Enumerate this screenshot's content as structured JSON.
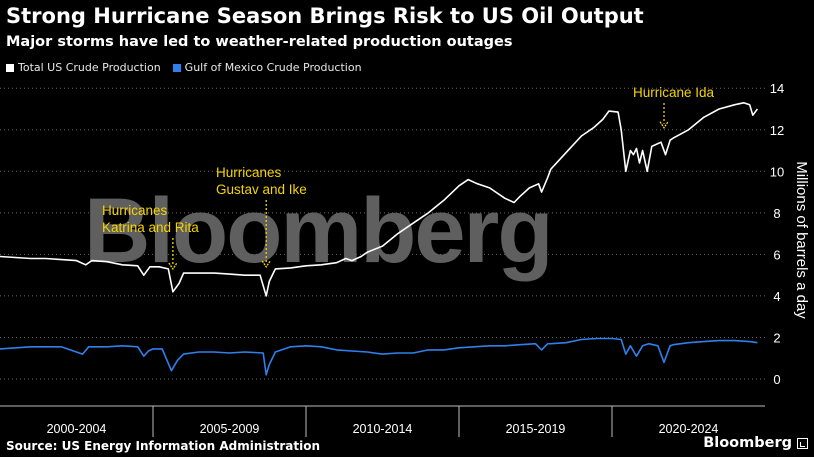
{
  "header": {
    "title": "Strong Hurricane Season Brings Risk to US Oil Output",
    "subtitle": "Major storms have led to weather-related production outages"
  },
  "legend": [
    {
      "label": "Total US Crude Production",
      "color": "#ffffff"
    },
    {
      "label": "Gulf of Mexico Crude Production",
      "color": "#2f80ed"
    }
  ],
  "footer": {
    "source": "Source: US Energy Information Administration",
    "brand": "Bloomberg"
  },
  "watermark": "Bloomberg",
  "chart_data": {
    "type": "line",
    "title": "Strong Hurricane Season Brings Risk to US Oil Output",
    "subtitle": "Major storms have led to weather-related production outages",
    "ylabel": "Millions of barrels a day",
    "xlabel": "",
    "ylim": [
      -1.3,
      14.3
    ],
    "xlim": [
      2000.0,
      2025.0
    ],
    "yticks": [
      0,
      2,
      4,
      6,
      8,
      10,
      12,
      14
    ],
    "x_categories": [
      "2000-2004",
      "2005-2009",
      "2010-2014",
      "2015-2019",
      "2020-2024"
    ],
    "grid": "horizontal dotted",
    "legend_position": "top-left",
    "series": [
      {
        "name": "Total US Crude Production",
        "color": "#ffffff",
        "points": [
          [
            2000.0,
            5.9
          ],
          [
            2000.5,
            5.85
          ],
          [
            2001.0,
            5.8
          ],
          [
            2001.5,
            5.8
          ],
          [
            2002.0,
            5.75
          ],
          [
            2002.5,
            5.7
          ],
          [
            2002.8,
            5.5
          ],
          [
            2003.0,
            5.7
          ],
          [
            2003.5,
            5.65
          ],
          [
            2004.0,
            5.5
          ],
          [
            2004.5,
            5.45
          ],
          [
            2004.7,
            5.0
          ],
          [
            2004.9,
            5.4
          ],
          [
            2005.2,
            5.4
          ],
          [
            2005.5,
            5.3
          ],
          [
            2005.65,
            4.2
          ],
          [
            2005.85,
            4.6
          ],
          [
            2006.0,
            5.1
          ],
          [
            2006.5,
            5.1
          ],
          [
            2007.0,
            5.1
          ],
          [
            2007.5,
            5.05
          ],
          [
            2008.0,
            5.0
          ],
          [
            2008.5,
            5.0
          ],
          [
            2008.7,
            4.0
          ],
          [
            2008.8,
            4.7
          ],
          [
            2009.0,
            5.3
          ],
          [
            2009.5,
            5.35
          ],
          [
            2010.0,
            5.45
          ],
          [
            2010.5,
            5.5
          ],
          [
            2011.0,
            5.6
          ],
          [
            2011.3,
            5.8
          ],
          [
            2011.5,
            5.7
          ],
          [
            2011.8,
            5.9
          ],
          [
            2012.0,
            6.1
          ],
          [
            2012.5,
            6.4
          ],
          [
            2013.0,
            7.0
          ],
          [
            2013.5,
            7.5
          ],
          [
            2014.0,
            8.0
          ],
          [
            2014.5,
            8.6
          ],
          [
            2015.0,
            9.3
          ],
          [
            2015.3,
            9.6
          ],
          [
            2015.6,
            9.4
          ],
          [
            2016.0,
            9.2
          ],
          [
            2016.5,
            8.7
          ],
          [
            2016.8,
            8.5
          ],
          [
            2017.0,
            8.8
          ],
          [
            2017.3,
            9.2
          ],
          [
            2017.6,
            9.4
          ],
          [
            2017.7,
            9.0
          ],
          [
            2017.9,
            9.7
          ],
          [
            2018.0,
            10.1
          ],
          [
            2018.5,
            10.9
          ],
          [
            2019.0,
            11.7
          ],
          [
            2019.4,
            12.1
          ],
          [
            2019.7,
            12.5
          ],
          [
            2019.9,
            12.9
          ],
          [
            2020.2,
            12.85
          ],
          [
            2020.3,
            12.0
          ],
          [
            2020.45,
            10.0
          ],
          [
            2020.6,
            11.0
          ],
          [
            2020.7,
            10.8
          ],
          [
            2020.8,
            11.1
          ],
          [
            2020.9,
            10.4
          ],
          [
            2021.0,
            11.0
          ],
          [
            2021.15,
            10.0
          ],
          [
            2021.3,
            11.2
          ],
          [
            2021.6,
            11.4
          ],
          [
            2021.75,
            10.8
          ],
          [
            2021.9,
            11.5
          ],
          [
            2022.0,
            11.6
          ],
          [
            2022.5,
            12.0
          ],
          [
            2023.0,
            12.6
          ],
          [
            2023.5,
            13.0
          ],
          [
            2024.0,
            13.2
          ],
          [
            2024.3,
            13.3
          ],
          [
            2024.5,
            13.2
          ],
          [
            2024.6,
            12.7
          ],
          [
            2024.75,
            13.0
          ]
        ]
      },
      {
        "name": "Gulf of Mexico Crude Production",
        "color": "#2f80ed",
        "points": [
          [
            2000.0,
            1.45
          ],
          [
            2001.0,
            1.55
          ],
          [
            2002.0,
            1.55
          ],
          [
            2002.7,
            1.2
          ],
          [
            2002.9,
            1.55
          ],
          [
            2003.5,
            1.55
          ],
          [
            2004.0,
            1.6
          ],
          [
            2004.5,
            1.55
          ],
          [
            2004.7,
            1.1
          ],
          [
            2004.85,
            1.35
          ],
          [
            2005.0,
            1.45
          ],
          [
            2005.3,
            1.45
          ],
          [
            2005.6,
            0.4
          ],
          [
            2005.8,
            0.9
          ],
          [
            2006.0,
            1.2
          ],
          [
            2006.5,
            1.3
          ],
          [
            2007.0,
            1.3
          ],
          [
            2007.5,
            1.25
          ],
          [
            2008.0,
            1.3
          ],
          [
            2008.6,
            1.25
          ],
          [
            2008.7,
            0.2
          ],
          [
            2008.8,
            0.7
          ],
          [
            2009.0,
            1.3
          ],
          [
            2009.5,
            1.55
          ],
          [
            2010.0,
            1.6
          ],
          [
            2010.5,
            1.55
          ],
          [
            2011.0,
            1.4
          ],
          [
            2011.5,
            1.35
          ],
          [
            2012.0,
            1.3
          ],
          [
            2012.5,
            1.2
          ],
          [
            2013.0,
            1.25
          ],
          [
            2013.5,
            1.25
          ],
          [
            2014.0,
            1.4
          ],
          [
            2014.5,
            1.4
          ],
          [
            2015.0,
            1.5
          ],
          [
            2015.5,
            1.55
          ],
          [
            2016.0,
            1.6
          ],
          [
            2016.5,
            1.6
          ],
          [
            2017.0,
            1.65
          ],
          [
            2017.5,
            1.7
          ],
          [
            2017.7,
            1.4
          ],
          [
            2017.9,
            1.7
          ],
          [
            2018.0,
            1.7
          ],
          [
            2018.5,
            1.75
          ],
          [
            2019.0,
            1.9
          ],
          [
            2019.5,
            1.95
          ],
          [
            2020.0,
            1.95
          ],
          [
            2020.3,
            1.9
          ],
          [
            2020.45,
            1.2
          ],
          [
            2020.6,
            1.6
          ],
          [
            2020.8,
            1.1
          ],
          [
            2021.0,
            1.6
          ],
          [
            2021.2,
            1.7
          ],
          [
            2021.5,
            1.6
          ],
          [
            2021.7,
            0.8
          ],
          [
            2021.9,
            1.6
          ],
          [
            2022.0,
            1.65
          ],
          [
            2022.5,
            1.75
          ],
          [
            2023.0,
            1.8
          ],
          [
            2023.5,
            1.85
          ],
          [
            2024.0,
            1.85
          ],
          [
            2024.5,
            1.8
          ],
          [
            2024.75,
            1.75
          ]
        ]
      }
    ],
    "annotations": [
      {
        "text": [
          "Hurricanes",
          "Katrina and Rita"
        ],
        "x": 2005.65,
        "y": 5.2
      },
      {
        "text": [
          "Hurricanes",
          "Gustav and Ike"
        ],
        "x": 2008.7,
        "y": 5.3
      },
      {
        "text": [
          "Hurricane Ida"
        ],
        "x": 2021.7,
        "y": 12.0
      }
    ]
  }
}
